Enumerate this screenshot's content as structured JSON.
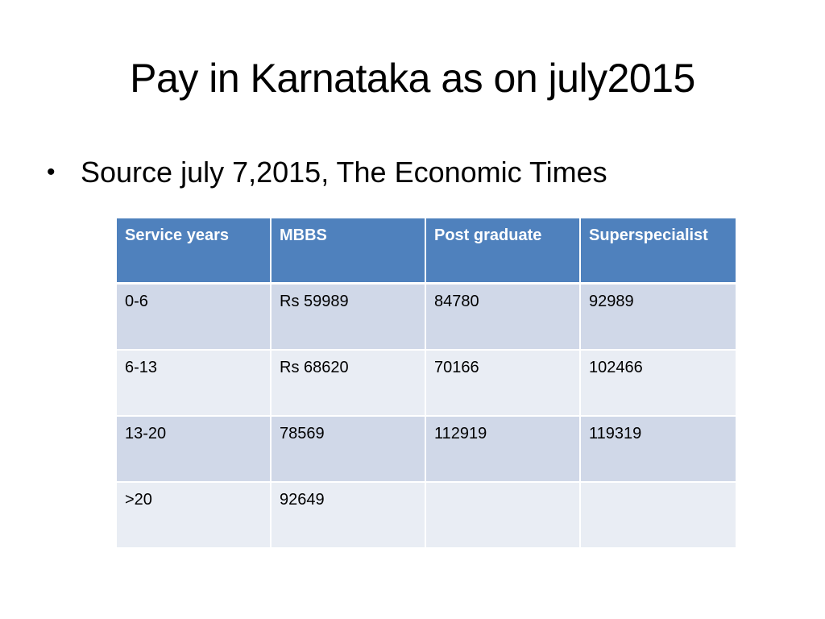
{
  "slide": {
    "title": "Pay in Karnataka as on july2015",
    "bullet": "Source july 7,2015, The Economic Times"
  },
  "table": {
    "headers": [
      "Service years",
      "MBBS",
      "Post graduate",
      "Superspecialist"
    ],
    "rows": [
      [
        "0-6",
        "Rs 59989",
        "84780",
        "92989"
      ],
      [
        "6-13",
        "Rs 68620",
        "70166",
        "102466"
      ],
      [
        "13-20",
        "78569",
        "112919",
        "119319"
      ],
      [
        ">20",
        "92649",
        "",
        ""
      ]
    ]
  },
  "colors": {
    "header_bg": "#4f81bd",
    "row_odd_bg": "#d0d8e8",
    "row_even_bg": "#e9edf4"
  }
}
